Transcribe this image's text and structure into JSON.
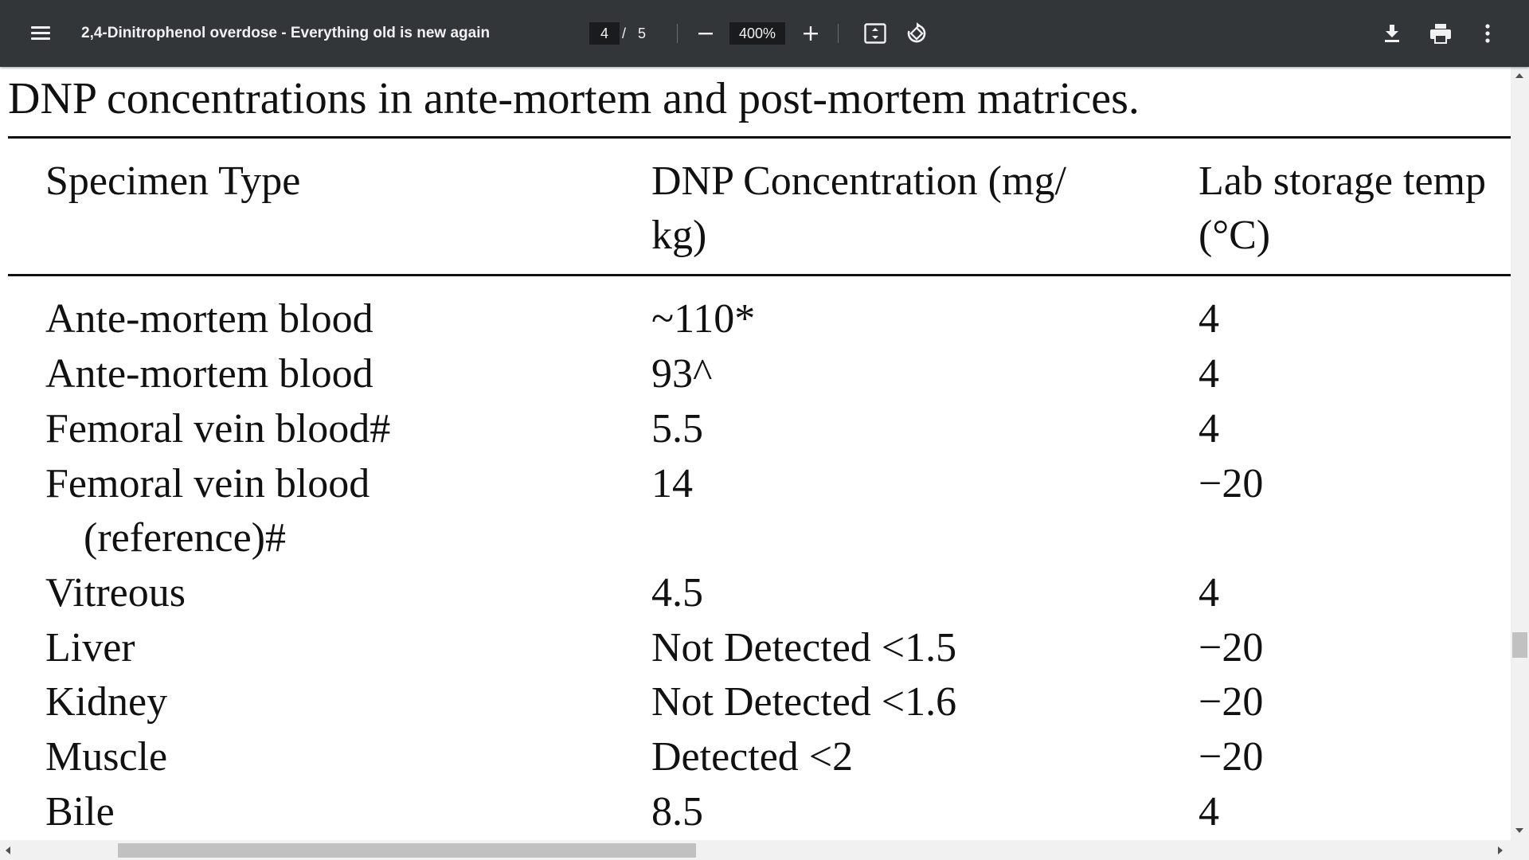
{
  "toolbar": {
    "title": "2,4-Dinitrophenol overdose - Everything old is new again",
    "page_current": "4",
    "page_separator": "/",
    "page_total": "5",
    "zoom": "400%",
    "icons": [
      "menu-icon",
      "zoom-out-icon",
      "zoom-in-icon",
      "fit-page-icon",
      "rotate-icon",
      "download-icon",
      "print-icon",
      "more-vert-icon"
    ]
  },
  "document": {
    "caption": "DNP concentrations in ante-mortem and post-mortem matrices.",
    "table": {
      "headers": [
        {
          "line1": "Specimen Type",
          "line2": ""
        },
        {
          "line1": "DNP Concentration (mg/",
          "line2": "kg)"
        },
        {
          "line1": "Lab storage temp",
          "line2": "(°C)"
        }
      ],
      "rows": [
        {
          "specimen": "Ante-mortem blood",
          "specimen_cont": "",
          "concentration": "~110*",
          "temp": "4"
        },
        {
          "specimen": "Ante-mortem blood",
          "specimen_cont": "",
          "concentration": "93^",
          "temp": "4"
        },
        {
          "specimen": "Femoral vein blood#",
          "specimen_cont": "",
          "concentration": "5.5",
          "temp": "4"
        },
        {
          "specimen": "Femoral vein blood",
          "specimen_cont": "(reference)#",
          "concentration": "14",
          "temp": "−20"
        },
        {
          "specimen": "Vitreous",
          "specimen_cont": "",
          "concentration": "4.5",
          "temp": "4"
        },
        {
          "specimen": "Liver",
          "specimen_cont": "",
          "concentration": "Not Detected <1.5",
          "temp": "−20"
        },
        {
          "specimen": "Kidney",
          "specimen_cont": "",
          "concentration": "Not Detected <1.6",
          "temp": "−20"
        },
        {
          "specimen": "Muscle",
          "specimen_cont": "",
          "concentration": "Detected <2",
          "temp": "−20"
        },
        {
          "specimen": "Bile",
          "specimen_cont": "",
          "concentration": "8.5",
          "temp": "4"
        }
      ]
    }
  },
  "colors": {
    "toolbar_bg": "#323639",
    "toolbar_text": "#f1f1f1",
    "input_bg": "#191b1c",
    "page_bg": "#ffffff",
    "scrollbar_track": "#f1f1f1",
    "scrollbar_thumb": "#c1c1c1"
  }
}
